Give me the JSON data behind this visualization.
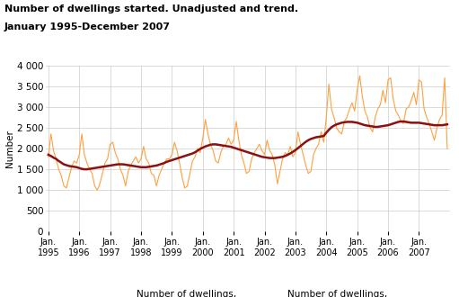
{
  "title_line1": "Number of dwellings started. Unadjusted and trend.",
  "title_line2": "January 1995-December 2007",
  "ylabel": "Number",
  "ylim": [
    0,
    4000
  ],
  "yticks": [
    0,
    500,
    1000,
    1500,
    2000,
    2500,
    3000,
    3500,
    4000
  ],
  "unadjusted_color": "#FFA040",
  "trend_color": "#8B1010",
  "unadjusted_label": "Number of dwellings,\nunadjusted",
  "trend_label": "Number of dwellings,\ntrend",
  "background_color": "#ffffff",
  "grid_color": "#cccccc",
  "unadjusted": [
    1800,
    2350,
    1950,
    1750,
    1500,
    1350,
    1100,
    1050,
    1300,
    1550,
    1700,
    1650,
    1850,
    2350,
    1850,
    1650,
    1500,
    1400,
    1100,
    1000,
    1150,
    1400,
    1650,
    1750,
    2100,
    2150,
    1900,
    1750,
    1500,
    1350,
    1100,
    1450,
    1600,
    1700,
    1800,
    1650,
    1750,
    2050,
    1750,
    1650,
    1400,
    1350,
    1100,
    1350,
    1500,
    1650,
    1750,
    1750,
    1850,
    2150,
    1950,
    1650,
    1300,
    1050,
    1100,
    1400,
    1700,
    1800,
    2000,
    1900,
    2250,
    2700,
    2350,
    2100,
    1950,
    1700,
    1650,
    1900,
    2050,
    2100,
    2250,
    2100,
    2200,
    2650,
    2200,
    1850,
    1650,
    1400,
    1450,
    1750,
    1900,
    2000,
    2100,
    1950,
    1850,
    2200,
    1950,
    1850,
    1600,
    1150,
    1450,
    1750,
    1900,
    1850,
    2050,
    1800,
    1900,
    2400,
    2100,
    1850,
    1600,
    1400,
    1450,
    1850,
    2000,
    2100,
    2400,
    2150,
    2750,
    3550,
    2950,
    2750,
    2500,
    2400,
    2350,
    2650,
    2750,
    2950,
    3100,
    2900,
    3400,
    3750,
    3250,
    2900,
    2750,
    2500,
    2400,
    2750,
    2950,
    3050,
    3400,
    3100,
    3650,
    3700,
    3200,
    2900,
    2800,
    2650,
    2600,
    2950,
    3000,
    3150,
    3350,
    3050,
    3650,
    3600,
    2950,
    2750,
    2600,
    2400,
    2200,
    2500,
    2700,
    2800,
    3700,
    2000
  ],
  "trend": [
    1850,
    1820,
    1780,
    1750,
    1700,
    1660,
    1620,
    1600,
    1580,
    1570,
    1560,
    1550,
    1530,
    1510,
    1500,
    1500,
    1510,
    1520,
    1530,
    1540,
    1550,
    1560,
    1570,
    1580,
    1590,
    1600,
    1610,
    1620,
    1620,
    1620,
    1610,
    1600,
    1590,
    1580,
    1570,
    1560,
    1550,
    1550,
    1550,
    1560,
    1570,
    1580,
    1590,
    1610,
    1630,
    1650,
    1680,
    1700,
    1720,
    1740,
    1760,
    1780,
    1800,
    1820,
    1840,
    1860,
    1880,
    1910,
    1950,
    1990,
    2020,
    2050,
    2070,
    2090,
    2100,
    2100,
    2090,
    2080,
    2070,
    2060,
    2050,
    2040,
    2020,
    2000,
    1980,
    1960,
    1940,
    1920,
    1900,
    1880,
    1860,
    1840,
    1820,
    1800,
    1790,
    1780,
    1770,
    1770,
    1770,
    1780,
    1790,
    1800,
    1820,
    1850,
    1880,
    1920,
    1960,
    2010,
    2060,
    2110,
    2160,
    2200,
    2230,
    2250,
    2270,
    2280,
    2290,
    2300,
    2380,
    2450,
    2510,
    2550,
    2580,
    2600,
    2620,
    2630,
    2640,
    2640,
    2640,
    2630,
    2620,
    2600,
    2580,
    2560,
    2550,
    2540,
    2530,
    2520,
    2520,
    2530,
    2540,
    2550,
    2560,
    2580,
    2600,
    2620,
    2640,
    2650,
    2650,
    2640,
    2630,
    2620,
    2620,
    2620,
    2620,
    2610,
    2600,
    2590,
    2580,
    2570,
    2560,
    2560,
    2560,
    2560,
    2570,
    2580
  ]
}
